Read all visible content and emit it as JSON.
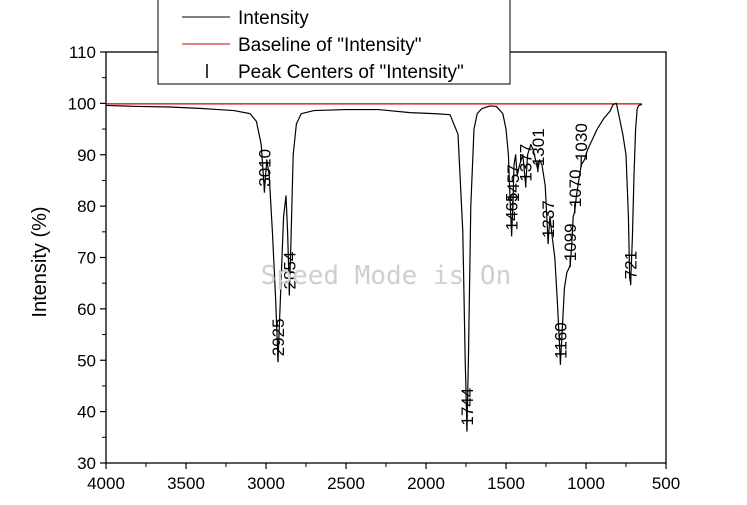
{
  "chart_data": {
    "type": "line",
    "title": "",
    "xlabel": "",
    "ylabel": "Intensity (%)",
    "xlim": [
      4000,
      500
    ],
    "ylim": [
      30,
      110
    ],
    "x_reversed": true,
    "x_ticks": [
      4000,
      3500,
      3000,
      2500,
      2000,
      1500,
      1000,
      500
    ],
    "y_ticks": [
      30,
      40,
      50,
      60,
      70,
      80,
      90,
      100,
      110
    ],
    "grid": false,
    "legend": {
      "placement": "top",
      "entries": [
        "Intensity",
        "Baseline of \"Intensity\"",
        "Peak Centers of \"Intensity\""
      ]
    },
    "series": [
      {
        "name": "Intensity",
        "color": "#000000",
        "points": [
          [
            4000,
            99.6
          ],
          [
            3800,
            99.4
          ],
          [
            3600,
            99.3
          ],
          [
            3400,
            99.0
          ],
          [
            3300,
            98.8
          ],
          [
            3200,
            98.6
          ],
          [
            3100,
            98.0
          ],
          [
            3060,
            96.5
          ],
          [
            3030,
            92.0
          ],
          [
            3010,
            83.0
          ],
          [
            2995,
            89.0
          ],
          [
            2980,
            86.0
          ],
          [
            2960,
            75.0
          ],
          [
            2940,
            62.0
          ],
          [
            2925,
            50.0
          ],
          [
            2910,
            62.0
          ],
          [
            2890,
            78.0
          ],
          [
            2875,
            82.0
          ],
          [
            2865,
            75.0
          ],
          [
            2854,
            63.0
          ],
          [
            2845,
            72.0
          ],
          [
            2830,
            90.0
          ],
          [
            2810,
            96.0
          ],
          [
            2780,
            98.0
          ],
          [
            2700,
            98.6
          ],
          [
            2500,
            98.8
          ],
          [
            2300,
            98.8
          ],
          [
            2100,
            98.2
          ],
          [
            1950,
            98.0
          ],
          [
            1850,
            97.8
          ],
          [
            1800,
            94.0
          ],
          [
            1770,
            75.0
          ],
          [
            1755,
            50.0
          ],
          [
            1744,
            36.5
          ],
          [
            1735,
            50.0
          ],
          [
            1720,
            80.0
          ],
          [
            1700,
            95.0
          ],
          [
            1680,
            98.0
          ],
          [
            1650,
            99.0
          ],
          [
            1600,
            99.5
          ],
          [
            1560,
            99.4
          ],
          [
            1520,
            98.0
          ],
          [
            1500,
            95.0
          ],
          [
            1485,
            90.0
          ],
          [
            1473,
            80.0
          ],
          [
            1465,
            74.5
          ],
          [
            1457,
            80.0
          ],
          [
            1450,
            88.0
          ],
          [
            1440,
            90.0
          ],
          [
            1430,
            86.0
          ],
          [
            1415,
            88.0
          ],
          [
            1395,
            90.0
          ],
          [
            1377,
            84.0
          ],
          [
            1365,
            90.0
          ],
          [
            1345,
            92.0
          ],
          [
            1330,
            91.0
          ],
          [
            1301,
            87.0
          ],
          [
            1290,
            89.0
          ],
          [
            1275,
            88.0
          ],
          [
            1255,
            84.0
          ],
          [
            1237,
            73.0
          ],
          [
            1225,
            78.0
          ],
          [
            1215,
            75.0
          ],
          [
            1195,
            70.0
          ],
          [
            1180,
            62.0
          ],
          [
            1160,
            49.5
          ],
          [
            1150,
            55.0
          ],
          [
            1135,
            64.0
          ],
          [
            1120,
            67.0
          ],
          [
            1099,
            68.5
          ],
          [
            1090,
            72.0
          ],
          [
            1080,
            78.0
          ],
          [
            1070,
            79.0
          ],
          [
            1060,
            82.0
          ],
          [
            1050,
            84.0
          ],
          [
            1040,
            86.0
          ],
          [
            1030,
            88.0
          ],
          [
            1010,
            89.0
          ],
          [
            990,
            91.0
          ],
          [
            960,
            93.0
          ],
          [
            930,
            95.0
          ],
          [
            890,
            97.0
          ],
          [
            850,
            98.5
          ],
          [
            830,
            99.8
          ],
          [
            810,
            100.0
          ],
          [
            790,
            97.0
          ],
          [
            770,
            94.0
          ],
          [
            750,
            90.0
          ],
          [
            735,
            78.0
          ],
          [
            727,
            66.0
          ],
          [
            721,
            65.0
          ],
          [
            710,
            74.0
          ],
          [
            700,
            86.0
          ],
          [
            690,
            95.0
          ],
          [
            680,
            99.0
          ],
          [
            670,
            99.6
          ],
          [
            650,
            99.8
          ]
        ]
      },
      {
        "name": "Baseline of \"Intensity\"",
        "color": "#cc0000",
        "points": [
          [
            4000,
            99.9
          ],
          [
            650,
            99.9
          ]
        ]
      }
    ],
    "peak_centers": [
      {
        "x": 3010,
        "label": "3010"
      },
      {
        "x": 2925,
        "label": "2925"
      },
      {
        "x": 2854,
        "label": "2854"
      },
      {
        "x": 1744,
        "label": "1744"
      },
      {
        "x": 1465,
        "label": "1465"
      },
      {
        "x": 1457,
        "label": "1457"
      },
      {
        "x": 1377,
        "label": "1377"
      },
      {
        "x": 1301,
        "label": "1301"
      },
      {
        "x": 1237,
        "label": "1237"
      },
      {
        "x": 1160,
        "label": "1160"
      },
      {
        "x": 1099,
        "label": "1099"
      },
      {
        "x": 1070,
        "label": "1070"
      },
      {
        "x": 1030,
        "label": "1030"
      },
      {
        "x": 721,
        "label": "721"
      }
    ]
  },
  "watermark": "Speed Mode is On"
}
